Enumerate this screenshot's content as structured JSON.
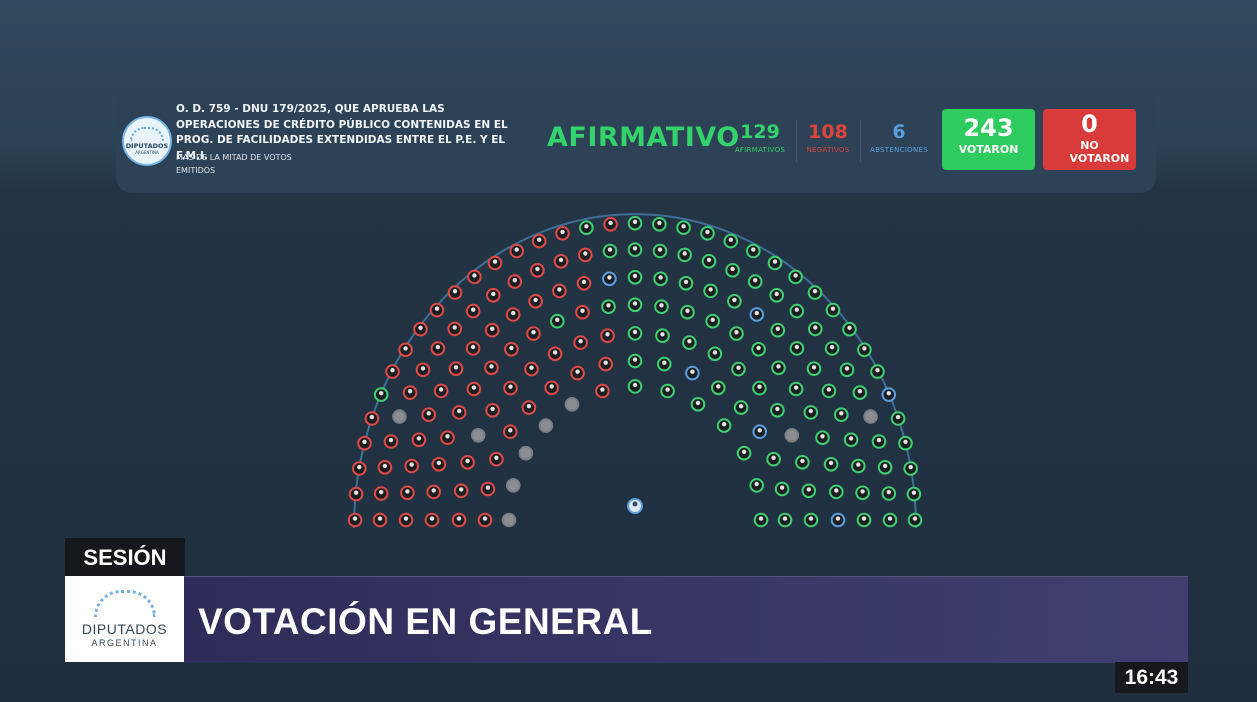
{
  "header": {
    "logo_text": "DIPUTADOS",
    "logo_subtext": "ARGENTINA",
    "title": "O. D. 759 - DNU 179/2025, QUE APRUEBA LAS OPERACIONES DE CRÉDITO PÚBLICO CONTENIDAS EN EL PROG. DE FACILIDADES EXTENDIDAS ENTRE EL P.E. Y EL F.M.I.",
    "majority_rule": "MÁS DE LA MITAD DE VOTOS EMITIDOS",
    "result": "AFIRMATIVO"
  },
  "counts": {
    "afirmativos": {
      "value": "129",
      "label": "AFIRMATIVOS",
      "color": "#33d36b"
    },
    "negativos": {
      "value": "108",
      "label": "NEGATIVOS",
      "color": "#e0423c"
    },
    "abstenciones": {
      "value": "6",
      "label": "ABSTENCIONES",
      "color": "#5a9fdc"
    }
  },
  "totals": {
    "votaron": {
      "value": "243",
      "label": "VOTARON",
      "color": "#2ecb5e"
    },
    "no_votaron": {
      "value": "0",
      "label": "NO VOTARON",
      "color": "#d93a3a"
    }
  },
  "lower_third": {
    "tag": "SESIÓN",
    "logo_text": "DIPUTADOS",
    "logo_subtext": "ARGENTINA",
    "headline": "VOTACIÓN EN GENERAL"
  },
  "clock": "16:43",
  "colors": {
    "afirmativo": "#3fd06f",
    "negativo": "#e04a45",
    "abstencion": "#5aa0e0",
    "ausente": "#7b7f84"
  }
}
